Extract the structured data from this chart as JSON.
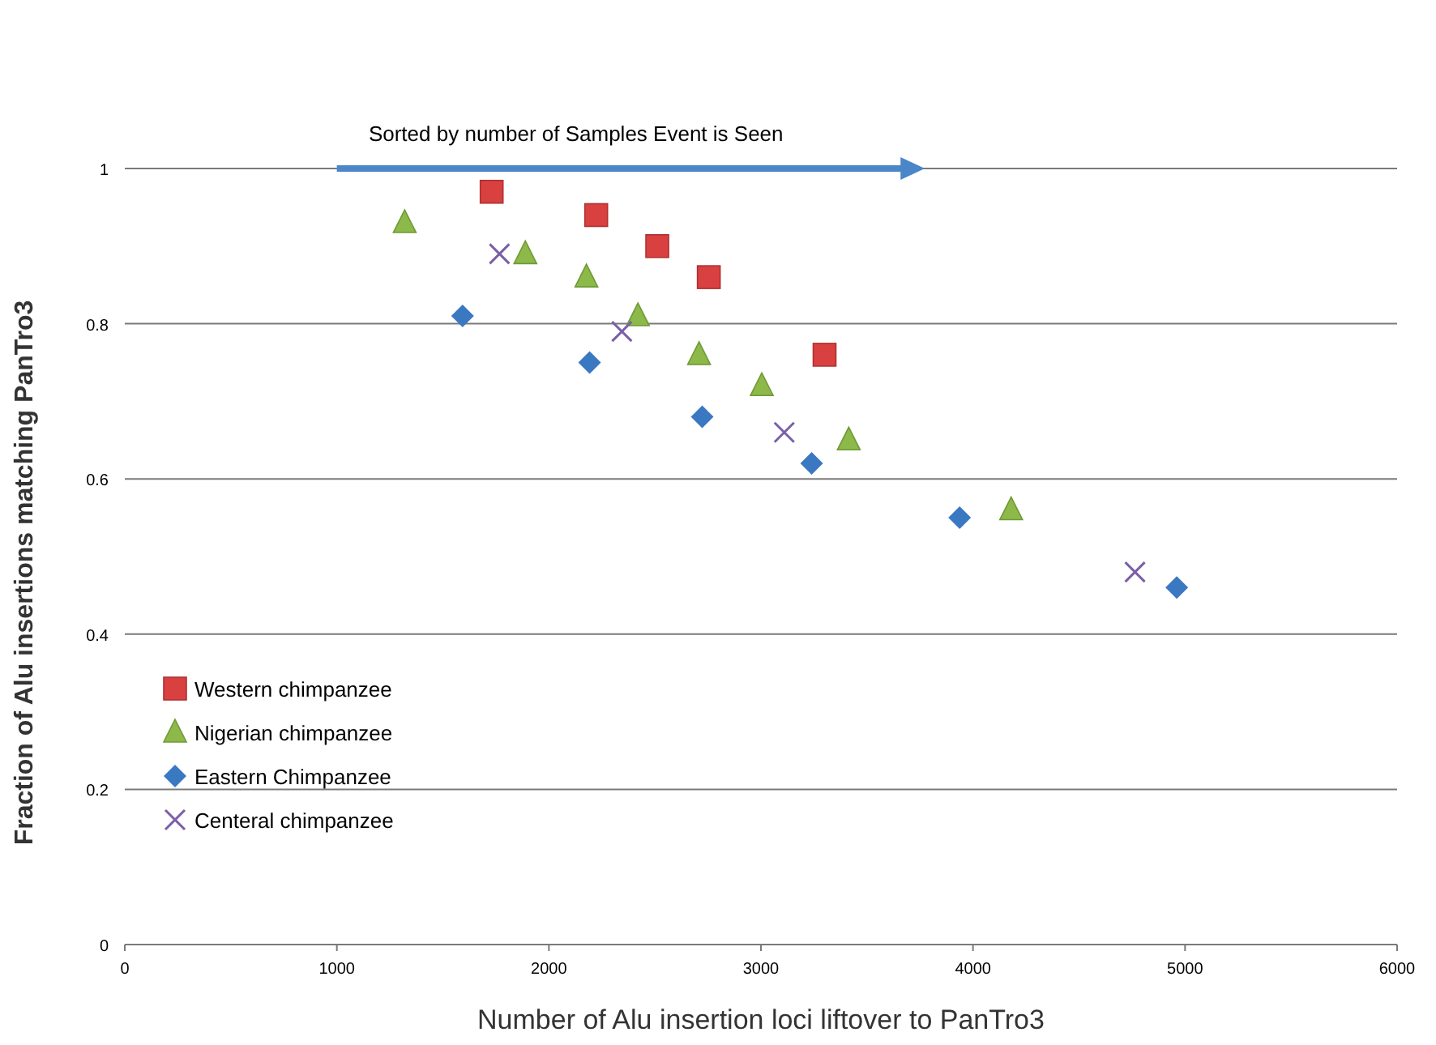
{
  "chart_data": {
    "type": "scatter",
    "xlabel": "Number of Alu insertion loci liftover to PanTro3",
    "ylabel": "Fraction of Alu insertions matching PanTro3",
    "xlim": [
      0,
      6000
    ],
    "xticks": [
      0,
      1000,
      2000,
      3000,
      4000,
      5000,
      6000
    ],
    "ylim": [
      0,
      1
    ],
    "yticks": [
      0,
      0.2,
      0.4,
      0.6,
      0.8,
      1
    ],
    "grid": "y",
    "legend": "bottom left",
    "annotations": [
      "Sorted by number of Samples Event is Seen"
    ],
    "series": [
      {
        "name": "Western chimpanzee",
        "color": "#d94040",
        "marker": "square",
        "x": [
          1730,
          2223,
          2511,
          2754,
          3300
        ],
        "values": [
          0.97,
          0.94,
          0.9,
          0.86,
          0.76
        ]
      },
      {
        "name": "Nigerian chimpanzee",
        "color": "#8db84a",
        "marker": "triangle",
        "x": [
          1320,
          1889,
          2177,
          2420,
          2708,
          3004,
          3414,
          4180
        ],
        "values": [
          0.93,
          0.89,
          0.86,
          0.81,
          0.76,
          0.72,
          0.65,
          0.56
        ]
      },
      {
        "name": "Eastern Chimpanzee",
        "color": "#3a78c2",
        "marker": "diamond",
        "x": [
          1593,
          2192,
          2723,
          3239,
          3937,
          4961
        ],
        "values": [
          0.81,
          0.75,
          0.68,
          0.62,
          0.55,
          0.46
        ]
      },
      {
        "name": "Centeral chimpanzee",
        "color": "#7b5fa8",
        "marker": "cross",
        "x": [
          1767,
          2344,
          3110,
          4764
        ],
        "values": [
          0.89,
          0.79,
          0.66,
          0.48
        ]
      }
    ]
  }
}
